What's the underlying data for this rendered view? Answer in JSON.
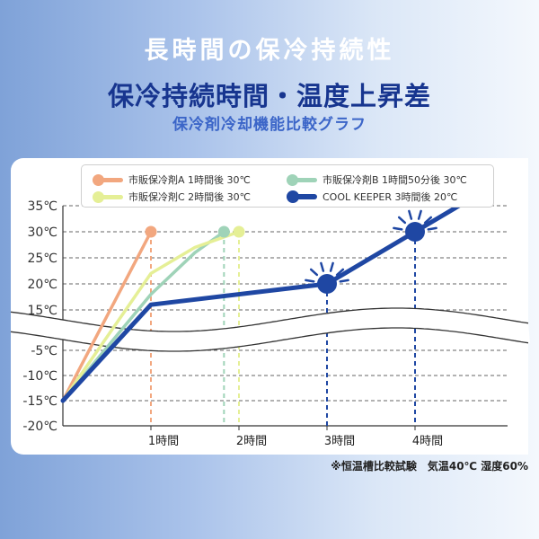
{
  "header": {
    "title": "長時間の保冷持続性",
    "subtitle": "保冷持続時間・温度上昇差",
    "caption": "保冷剤冷却機能比較グラフ"
  },
  "footnote": "※恒温槽比較試験　気温40℃ 湿度60%",
  "colors": {
    "background_left": "#7fa2d8",
    "background_right": "#f4f8fd",
    "title_main": "#17358f",
    "title_sub": "#3b65c8"
  },
  "chart_data": {
    "type": "line",
    "title": "",
    "xlabel": "",
    "ylabel": "",
    "y_ticks": [
      "35℃",
      "30℃",
      "25℃",
      "20℃",
      "15℃",
      "-5℃",
      "-10℃",
      "-15℃",
      "-20℃"
    ],
    "y_axis_break": "15℃ と -5℃ の間は省略（波線）",
    "x_ticks": [
      "1時間",
      "2時間",
      "3時間",
      "4時間"
    ],
    "x_tick_hours": [
      1,
      2,
      3,
      4
    ],
    "x_range_hours": [
      0,
      4.5
    ],
    "grid": true,
    "legend_position": "top",
    "series": [
      {
        "name": "市販保冷剤A",
        "legend": "市販保冷剤A 1時間後 30℃",
        "color": "#f2a77f",
        "points": [
          [
            0,
            -15
          ],
          [
            1,
            30
          ]
        ],
        "marked_point": [
          1,
          30
        ]
      },
      {
        "name": "市販保冷剤B",
        "legend": "市販保冷剤B 1時間50分後 30℃",
        "color": "#9fd3b8",
        "points": [
          [
            0,
            -15
          ],
          [
            1,
            18
          ],
          [
            1.5,
            26
          ],
          [
            1.83,
            30
          ]
        ],
        "marked_point": [
          1.83,
          30
        ]
      },
      {
        "name": "市販保冷剤C",
        "legend": "市販保冷剤C 2時間後 30℃",
        "color": "#e5ef96",
        "points": [
          [
            0,
            -15
          ],
          [
            1,
            22
          ],
          [
            1.5,
            27
          ],
          [
            2,
            30
          ]
        ],
        "marked_point": [
          2,
          30
        ]
      },
      {
        "name": "COOL KEEPER",
        "legend": "COOL KEEPER 3時間後 20℃",
        "color": "#1f47a3",
        "points": [
          [
            0,
            -15
          ],
          [
            1,
            16
          ],
          [
            3,
            20
          ],
          [
            4,
            30
          ],
          [
            4.5,
            35
          ]
        ],
        "marked_points": [
          [
            3,
            20
          ],
          [
            4,
            30
          ]
        ]
      }
    ]
  }
}
